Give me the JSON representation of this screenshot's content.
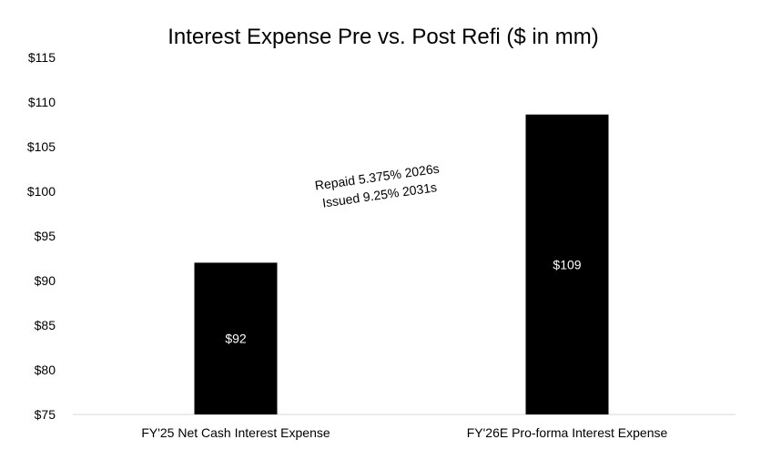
{
  "chart_data": {
    "type": "bar",
    "title": "Interest Expense Pre vs. Post Refi ($ in mm)",
    "xlabel": "",
    "ylabel": "",
    "categories": [
      "FY'25 Net Cash Interest Expense",
      "FY'26E Pro-forma Interest Expense"
    ],
    "values": [
      92,
      108.6
    ],
    "data_labels": [
      "$92",
      "$109"
    ],
    "ylim": [
      75,
      115
    ],
    "yticks": [
      75,
      80,
      85,
      90,
      95,
      100,
      105,
      110,
      115
    ],
    "ytick_labels": [
      "$75",
      "$80",
      "$85",
      "$90",
      "$95",
      "$100",
      "$105",
      "$110",
      "$115"
    ],
    "annotation": [
      "Repaid 5.375% 2026s",
      "Issued 9.25% 2031s"
    ],
    "grid": false,
    "legend": "none",
    "colors": {
      "bar": "#000000",
      "bar_label": "#ffffff",
      "axis": "#d9d9d9"
    }
  }
}
